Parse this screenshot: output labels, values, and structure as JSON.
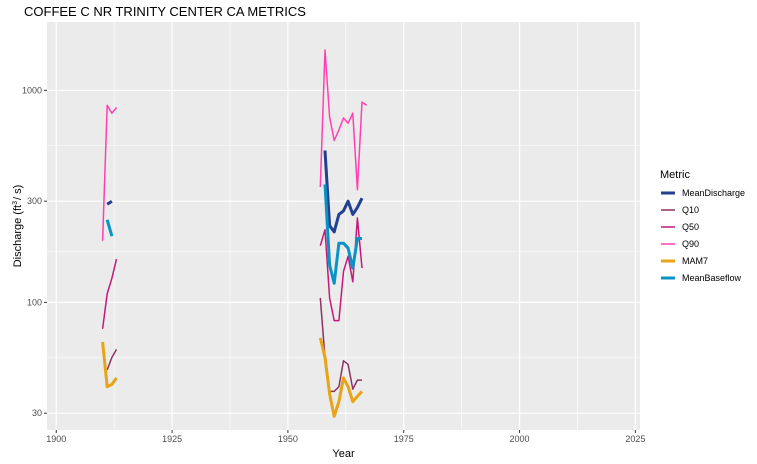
{
  "chart_data": {
    "type": "line",
    "title": "COFFEE C NR TRINITY CENTER CA  METRICS",
    "xlabel": "Year",
    "ylabel_main": "Discharge (ft",
    "ylabel_sup": "3",
    "ylabel_tail": "/ s)",
    "xlim": [
      1898,
      2026
    ],
    "ylim": [
      25,
      2100
    ],
    "y_scale": "log",
    "x_ticks": [
      1900,
      1925,
      1950,
      1975,
      2000,
      2025
    ],
    "x_tick_labels": [
      "1900",
      "1925",
      "1950",
      "1975",
      "2000",
      "2025"
    ],
    "y_ticks": [
      30,
      100,
      300,
      1000
    ],
    "y_tick_labels": [
      "30",
      "100",
      "300",
      "1000"
    ],
    "grid": true,
    "legend_title": "Metric",
    "legend_position": "right",
    "series": [
      {
        "name": "MeanDischarge",
        "color": "#233f8f",
        "width": 3,
        "segments": [
          [
            [
              1911,
              290
            ],
            [
              1912,
              300
            ]
          ],
          [
            [
              1958,
              520
            ],
            [
              1959,
              230
            ],
            [
              1960,
              215
            ],
            [
              1961,
              260
            ],
            [
              1962,
              270
            ],
            [
              1963,
              300
            ],
            [
              1964,
              260
            ],
            [
              1965,
              280
            ],
            [
              1966,
              310
            ]
          ]
        ]
      },
      {
        "name": "Q10",
        "color": "#8c3361",
        "width": 1.5,
        "segments": [
          [
            [
              1911,
              48
            ],
            [
              1912,
              55
            ],
            [
              1913,
              60
            ]
          ],
          [
            [
              1957,
              105
            ],
            [
              1958,
              55
            ],
            [
              1959,
              38
            ],
            [
              1960,
              38
            ],
            [
              1961,
              40
            ],
            [
              1962,
              53
            ],
            [
              1963,
              51
            ],
            [
              1964,
              39
            ],
            [
              1965,
              43
            ],
            [
              1966,
              43
            ]
          ]
        ]
      },
      {
        "name": "Q50",
        "color": "#c4197a",
        "width": 1.5,
        "segments": [
          [
            [
              1910,
              75
            ],
            [
              1911,
              110
            ],
            [
              1912,
              130
            ],
            [
              1913,
              160
            ]
          ],
          [
            [
              1957,
              185
            ],
            [
              1958,
              220
            ],
            [
              1959,
              105
            ],
            [
              1960,
              82
            ],
            [
              1961,
              82
            ],
            [
              1962,
              140
            ],
            [
              1963,
              165
            ],
            [
              1964,
              125
            ],
            [
              1965,
              250
            ],
            [
              1966,
              145
            ]
          ]
        ]
      },
      {
        "name": "Q90",
        "color": "#ff40b0",
        "width": 1.5,
        "segments": [
          [
            [
              1910,
              195
            ],
            [
              1911,
              850
            ],
            [
              1912,
              780
            ],
            [
              1913,
              830
            ]
          ],
          [
            [
              1957,
              350
            ],
            [
              1958,
              1550
            ],
            [
              1959,
              750
            ],
            [
              1960,
              580
            ],
            [
              1961,
              650
            ],
            [
              1962,
              740
            ],
            [
              1963,
              700
            ],
            [
              1964,
              780
            ],
            [
              1965,
              340
            ],
            [
              1966,
              880
            ],
            [
              1967,
              850
            ]
          ]
        ]
      },
      {
        "name": "MAM7",
        "color": "#e8a317",
        "width": 3,
        "segments": [
          [
            [
              1910,
              65
            ],
            [
              1911,
              40
            ],
            [
              1912,
              41
            ],
            [
              1913,
              44
            ]
          ],
          [
            [
              1957,
              68
            ],
            [
              1958,
              55
            ],
            [
              1959,
              37
            ],
            [
              1960,
              29
            ],
            [
              1961,
              34
            ],
            [
              1962,
              44
            ],
            [
              1963,
              40
            ],
            [
              1964,
              34
            ],
            [
              1965,
              36
            ],
            [
              1966,
              38
            ]
          ]
        ]
      },
      {
        "name": "MeanBaseflow",
        "color": "#0a94c6",
        "width": 3,
        "segments": [
          [
            [
              1911,
              245
            ],
            [
              1912,
              205
            ]
          ],
          [
            [
              1958,
              360
            ],
            [
              1959,
              150
            ],
            [
              1960,
              123
            ],
            [
              1961,
              190
            ],
            [
              1962,
              190
            ],
            [
              1963,
              180
            ],
            [
              1964,
              145
            ],
            [
              1965,
              200
            ],
            [
              1966,
              200
            ]
          ]
        ]
      }
    ]
  }
}
